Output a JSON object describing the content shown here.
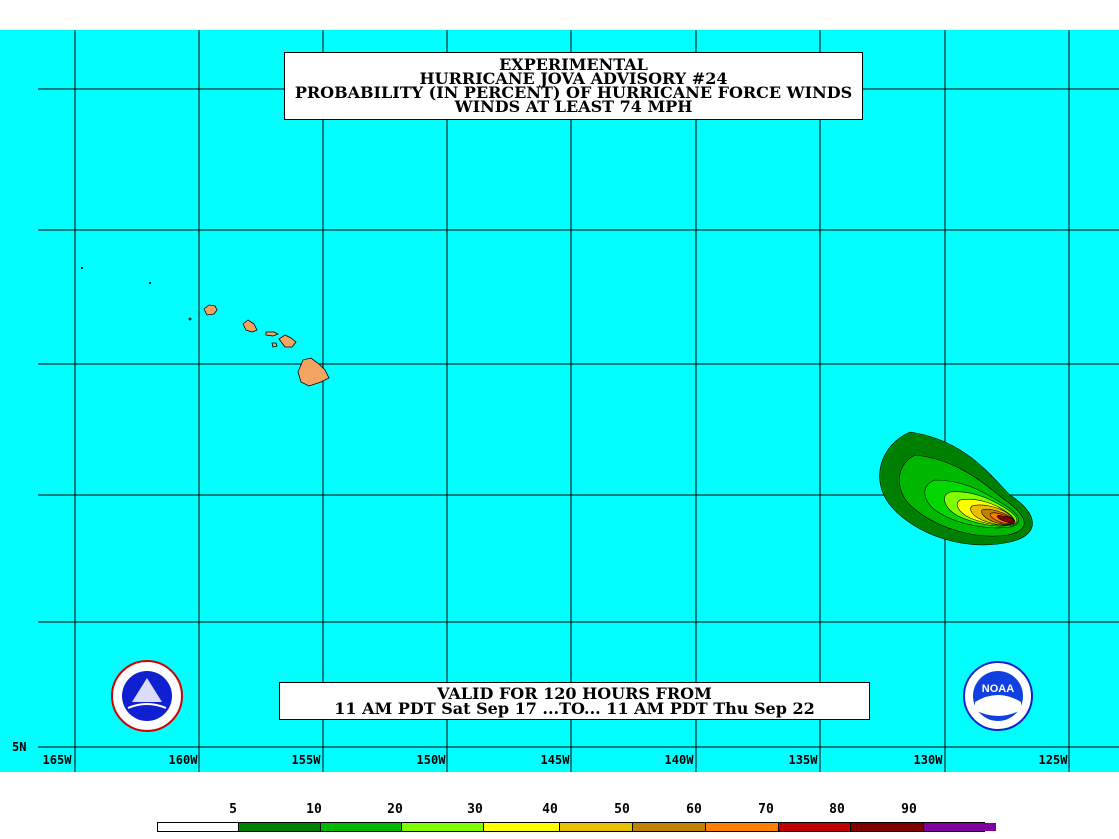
{
  "title": {
    "line1": "EXPERIMENTAL",
    "line2": "HURRICANE JOVA ADVISORY #24",
    "line3": "PROBABILITY (IN PERCENT) OF HURRICANE FORCE WINDS",
    "line4": "WINDS AT LEAST 74 MPH"
  },
  "valid": {
    "line1": "VALID FOR 120 HOURS FROM",
    "line2": "11 AM PDT Sat Sep 17 ...TO... 11 AM PDT Thu Sep 22"
  },
  "axes": {
    "longitudes": [
      "165W",
      "160W",
      "155W",
      "150W",
      "145W",
      "140W",
      "135W",
      "130W",
      "125W"
    ],
    "latitude_label": "5N"
  },
  "legend": {
    "labels": [
      "5",
      "10",
      "20",
      "30",
      "40",
      "50",
      "60",
      "70",
      "80",
      "90"
    ],
    "colors": [
      "#ffffff",
      "#008000",
      "#00b800",
      "#00d800",
      "#80ff00",
      "#ffff00",
      "#e8c000",
      "#c08000",
      "#ff8000",
      "#c00000",
      "#800000",
      "#8000a0"
    ]
  },
  "colors": {
    "ocean": "#00ffff",
    "land": "#f4a460"
  },
  "logos": {
    "nws": "nws-logo",
    "noaa": "NOAA"
  }
}
